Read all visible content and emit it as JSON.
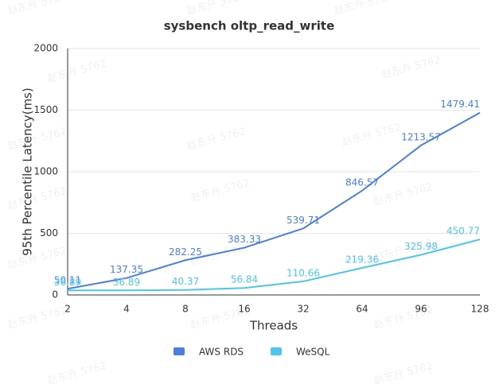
{
  "chart_data": {
    "type": "line",
    "title": "sysbench oltp_read_write",
    "x_label": "Threads",
    "y_label": "95th Percentile Latency(ms)",
    "categories": [
      "2",
      "4",
      "8",
      "16",
      "32",
      "64",
      "96",
      "128"
    ],
    "series": [
      {
        "name": "AWS RDS",
        "color": "#4a7fe0",
        "values": [
          50.11,
          137.35,
          282.25,
          383.33,
          539.71,
          846.57,
          1213.57,
          1479.41
        ]
      },
      {
        "name": "WeSQL",
        "color": "#4cc6ea",
        "values": [
          36.89,
          36.89,
          40.37,
          56.84,
          110.66,
          219.36,
          325.98,
          450.77
        ]
      }
    ],
    "ylim": [
      0,
      2000
    ],
    "yticks": [
      0,
      500,
      1000,
      1500,
      2000
    ],
    "grid": true,
    "legend": "bottom",
    "watermark": "赵东升 5762"
  }
}
